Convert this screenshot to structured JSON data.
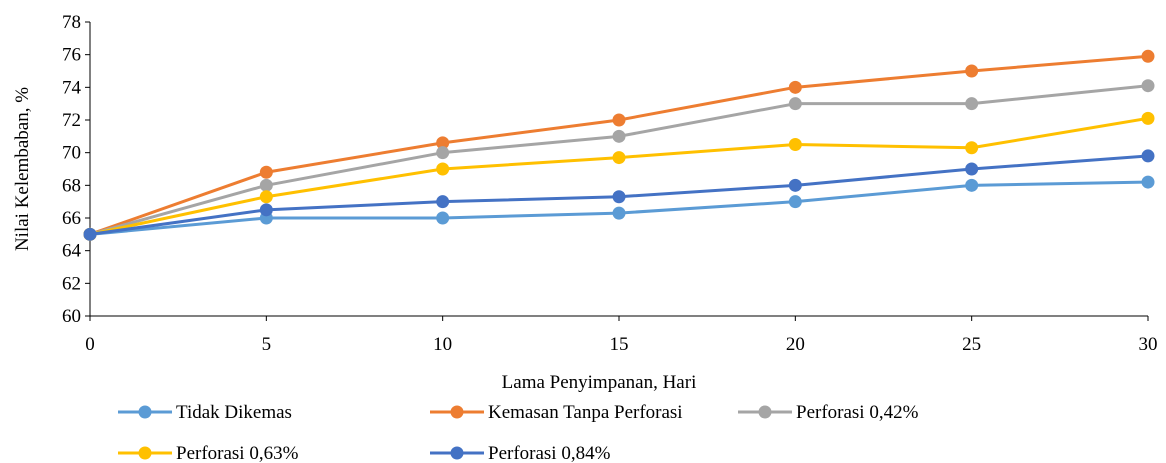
{
  "chart_data": {
    "type": "line",
    "xlabel": "Lama Penyimpanan, Hari",
    "ylabel": "Nilai Kelembaban, %",
    "x": [
      0,
      5,
      10,
      15,
      20,
      25,
      30
    ],
    "xticks": [
      "0",
      "5",
      "10",
      "15",
      "20",
      "25",
      "30"
    ],
    "yticks": [
      "60",
      "62",
      "64",
      "66",
      "68",
      "70",
      "72",
      "74",
      "76",
      "78"
    ],
    "xlim": [
      0,
      30
    ],
    "ylim": [
      60,
      78
    ],
    "grid": false,
    "legend_position": "bottom",
    "series": [
      {
        "name": "Tidak Dikemas",
        "color": "#5B9BD5",
        "values": [
          65.0,
          66.0,
          66.0,
          66.3,
          67.0,
          68.0,
          68.2
        ]
      },
      {
        "name": "Kemasan Tanpa Perforasi",
        "color": "#ED7D31",
        "values": [
          65.0,
          68.8,
          70.6,
          72.0,
          74.0,
          75.0,
          75.9
        ]
      },
      {
        "name": "Perforasi 0,42%",
        "color": "#A5A5A5",
        "values": [
          65.0,
          68.0,
          70.0,
          71.0,
          73.0,
          73.0,
          74.1
        ]
      },
      {
        "name": "Perforasi 0,63%",
        "color": "#FFC000",
        "values": [
          65.0,
          67.3,
          69.0,
          69.7,
          70.5,
          70.3,
          72.1
        ]
      },
      {
        "name": "Perforasi 0,84%",
        "color": "#4472C4",
        "values": [
          65.0,
          66.5,
          67.0,
          67.3,
          68.0,
          69.0,
          69.8
        ]
      }
    ]
  }
}
